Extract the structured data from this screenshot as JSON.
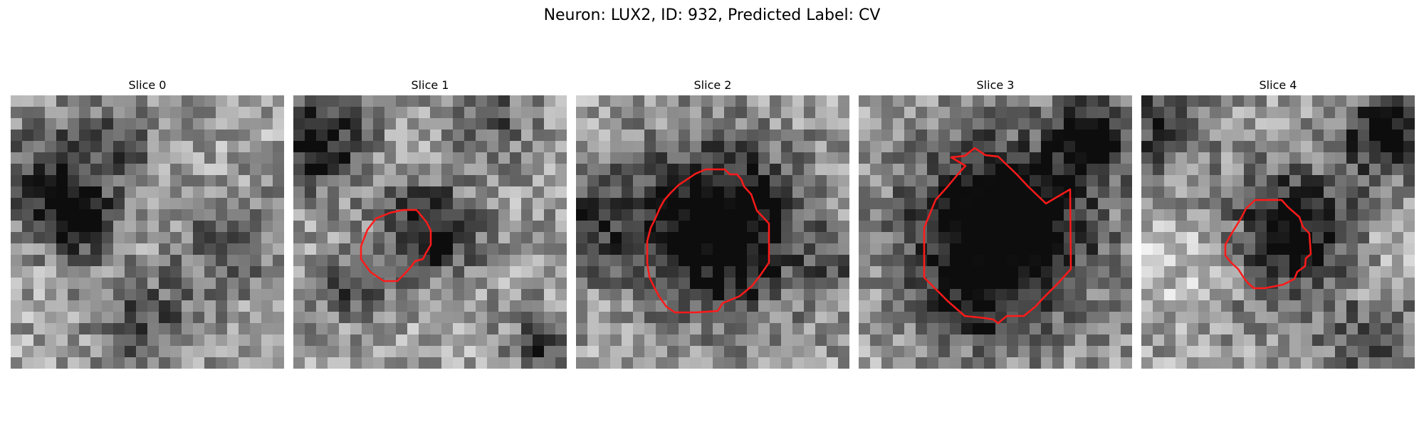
{
  "figure": {
    "title": "Neuron: LUX2, ID: 932, Predicted Label: CV"
  },
  "panels": [
    {
      "title": "Slice 0",
      "has_contour": false
    },
    {
      "title": "Slice 1",
      "has_contour": true
    },
    {
      "title": "Slice 2",
      "has_contour": true
    },
    {
      "title": "Slice 3",
      "has_contour": true
    },
    {
      "title": "Slice 4",
      "has_contour": true
    }
  ],
  "colors": {
    "contour": "#ff1a1a",
    "background": "#ffffff"
  }
}
